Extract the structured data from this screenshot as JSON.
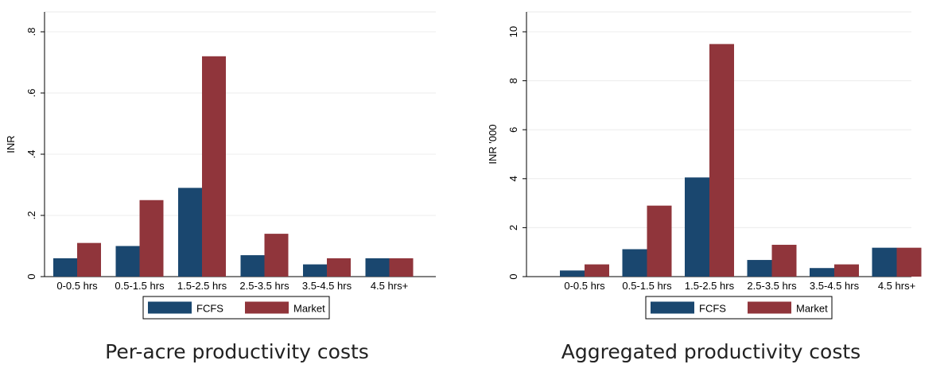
{
  "chart_data": [
    {
      "type": "bar",
      "caption": "Per-acre productivity costs",
      "ylabel": "INR",
      "ylim": [
        0,
        0.8
      ],
      "yticks": [
        0,
        0.2,
        0.4,
        0.6,
        0.8
      ],
      "ytick_labels": [
        "0",
        ".2",
        ".4",
        ".6",
        ".8"
      ],
      "categories": [
        "0-0.5 hrs",
        "0.5-1.5 hrs",
        "1.5-2.5 hrs",
        "2.5-3.5 hrs",
        "3.5-4.5 hrs",
        "4.5 hrs+"
      ],
      "series": [
        {
          "name": "FCFS",
          "color": "#1a476f",
          "values": [
            0.06,
            0.1,
            0.29,
            0.07,
            0.04,
            0.06
          ]
        },
        {
          "name": "Market",
          "color": "#90353b",
          "values": [
            0.11,
            0.25,
            0.72,
            0.14,
            0.06,
            0.06
          ]
        }
      ],
      "grid": true,
      "legend_position": "bottom"
    },
    {
      "type": "bar",
      "caption": "Aggregated productivity costs",
      "ylabel": "INR '000",
      "ylim": [
        0,
        10
      ],
      "yticks": [
        0,
        2,
        4,
        6,
        8,
        10
      ],
      "ytick_labels": [
        "0",
        "2",
        "4",
        "6",
        "8",
        "10"
      ],
      "categories": [
        "0-0.5 hrs",
        "0.5-1.5 hrs",
        "1.5-2.5 hrs",
        "2.5-3.5 hrs",
        "3.5-4.5 hrs",
        "4.5 hrs+"
      ],
      "series": [
        {
          "name": "FCFS",
          "color": "#1a476f",
          "values": [
            0.25,
            1.12,
            4.05,
            0.68,
            0.35,
            1.18
          ]
        },
        {
          "name": "Market",
          "color": "#90353b",
          "values": [
            0.5,
            2.9,
            9.5,
            1.3,
            0.5,
            1.18
          ]
        }
      ],
      "grid": true,
      "legend_position": "bottom"
    }
  ]
}
